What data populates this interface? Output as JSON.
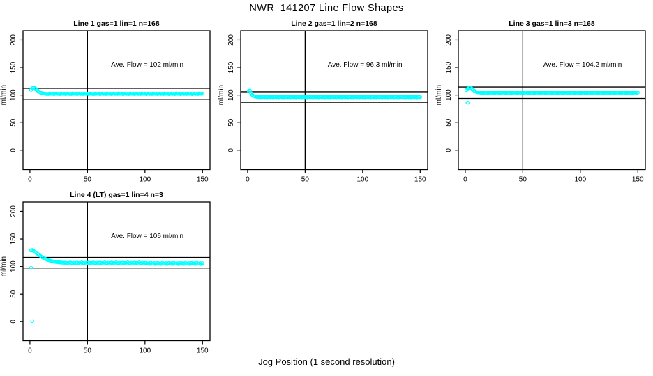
{
  "title": "NWR_141207  Line Flow Shapes",
  "xlabel": "Jog Position (1 second resolution)",
  "colors": {
    "points": "#00ffff",
    "axis": "#000000",
    "background": "#ffffff"
  },
  "axes": {
    "x_ticks": [
      0,
      50,
      100,
      150
    ],
    "y_ticks": [
      0,
      50,
      100,
      150,
      200
    ],
    "ylabel": "ml/min",
    "xlim": [
      -6,
      156.5
    ],
    "ylim": [
      -35,
      217
    ],
    "vline_x": 50,
    "grid": "off",
    "layout": {
      "rows": 2,
      "cols": 3,
      "filled_cells": [
        0,
        1,
        2,
        3
      ]
    }
  },
  "chart_data": [
    {
      "type": "scatter",
      "title": "Line 1 gas=1 lin=1 n=168",
      "annotation": "Ave. Flow =  102  ml/min",
      "ave_flow": 102,
      "hlines": [
        112.2,
        91.8
      ],
      "x_start": 1,
      "x_step": 1,
      "y": [
        109.5,
        112.5,
        113.8,
        113.0,
        111.5,
        109.5,
        107.5,
        105.8,
        104.6,
        103.8,
        103.2,
        102.8,
        102.7,
        102.0,
        102.4,
        101.8,
        102.9,
        102.3,
        102.1,
        102.6,
        101.7,
        102.5,
        102.7,
        102.0,
        102.4,
        101.8,
        102.9,
        102.3,
        102.1,
        102.6,
        101.7,
        102.5,
        102.7,
        102.0,
        102.4,
        101.8,
        102.9,
        102.3,
        102.1,
        102.6,
        101.7,
        102.5,
        102.7,
        102.0,
        102.4,
        101.8,
        102.9,
        102.3,
        102.1,
        102.6,
        101.7,
        102.5,
        102.7,
        102.0,
        102.4,
        101.8,
        102.9,
        102.3,
        102.1,
        102.6,
        101.7,
        102.5,
        102.7,
        102.0,
        102.4,
        101.8,
        102.9,
        102.3,
        102.1,
        102.6,
        101.7,
        102.5,
        102.7,
        102.0,
        102.4,
        101.8,
        102.9,
        102.3,
        102.1,
        102.6,
        101.7,
        102.5,
        102.7,
        102.0,
        102.4,
        101.8,
        102.9,
        102.3,
        102.1,
        102.6,
        101.7,
        102.5,
        102.7,
        102.0,
        102.4,
        101.8,
        102.9,
        102.3,
        102.1,
        102.6,
        101.7,
        102.5,
        102.7,
        102.0,
        102.4,
        101.8,
        102.9,
        102.3,
        102.1,
        102.6,
        101.7,
        102.5,
        102.7,
        102.0,
        102.4,
        101.8,
        102.9,
        102.3,
        102.1,
        102.6,
        101.7,
        102.5,
        102.7,
        102.0,
        102.4,
        101.8,
        102.9,
        102.3,
        102.1,
        102.6,
        101.7,
        102.5,
        102.7,
        102.0,
        102.4,
        101.8,
        102.9,
        102.3,
        102.1,
        102.6,
        101.7,
        102.5,
        102.7,
        102.0,
        102.4,
        101.8,
        102.9,
        102.3,
        102.1,
        102.6
      ],
      "outliers": []
    },
    {
      "type": "scatter",
      "title": "Line 2 gas=1 lin=2 n=168",
      "annotation": "Ave. Flow =  96.3  ml/min",
      "ave_flow": 96.3,
      "hlines": [
        105.9,
        86.7
      ],
      "x_start": 1,
      "x_step": 1,
      "y": [
        107.5,
        108.2,
        103.5,
        100.2,
        98.6,
        97.6,
        97.1,
        96.8,
        96.8,
        96.1,
        96.5,
        95.9,
        97.0,
        96.4,
        96.2,
        96.7,
        95.8,
        96.6,
        96.8,
        96.1,
        96.5,
        95.9,
        97.0,
        96.4,
        96.2,
        96.7,
        95.8,
        96.6,
        96.8,
        96.1,
        96.5,
        95.9,
        97.0,
        96.4,
        96.2,
        96.7,
        95.8,
        96.6,
        96.8,
        96.1,
        96.5,
        95.9,
        97.0,
        96.4,
        96.2,
        96.7,
        95.8,
        96.6,
        96.8,
        96.1,
        96.5,
        95.9,
        97.0,
        96.4,
        96.2,
        96.7,
        95.8,
        96.6,
        96.8,
        96.1,
        96.5,
        95.9,
        97.0,
        96.4,
        96.2,
        96.7,
        95.8,
        96.6,
        96.8,
        96.1,
        96.5,
        95.9,
        97.0,
        96.4,
        96.2,
        96.7,
        95.8,
        96.6,
        96.8,
        96.1,
        96.5,
        95.9,
        97.0,
        96.4,
        96.2,
        96.7,
        95.8,
        96.6,
        96.8,
        96.1,
        96.5,
        95.9,
        97.0,
        96.4,
        96.2,
        96.7,
        95.8,
        96.6,
        96.8,
        96.1,
        96.5,
        95.9,
        97.0,
        96.4,
        96.2,
        96.7,
        95.8,
        96.6,
        96.8,
        96.1,
        96.5,
        95.9,
        97.0,
        96.4,
        96.2,
        96.7,
        95.8,
        96.6,
        96.8,
        96.1,
        96.5,
        95.9,
        97.0,
        96.4,
        96.2,
        96.7,
        95.8,
        96.6,
        96.8,
        96.1,
        96.5,
        95.9,
        97.0,
        96.4,
        96.2,
        96.7,
        95.8,
        96.6,
        96.8,
        96.1,
        96.5,
        95.9,
        97.0,
        96.4,
        96.2,
        96.7,
        95.8,
        96.6,
        96.8,
        96.1
      ],
      "outliers": []
    },
    {
      "type": "scatter",
      "title": "Line 3 gas=1 lin=3 n=168",
      "annotation": "Ave. Flow =  104.2  ml/min",
      "ave_flow": 104.2,
      "hlines": [
        114.6,
        93.8
      ],
      "x_start": 1,
      "x_step": 1,
      "y": [
        109.0,
        111.5,
        113.2,
        113.6,
        112.8,
        111.2,
        109.3,
        107.6,
        106.3,
        105.4,
        104.9,
        104.6,
        104.7,
        104.0,
        104.4,
        103.8,
        104.9,
        104.3,
        104.1,
        104.6,
        103.7,
        104.5,
        104.7,
        104.0,
        104.4,
        103.8,
        104.9,
        104.3,
        104.1,
        104.6,
        103.7,
        104.5,
        104.7,
        104.0,
        104.4,
        103.8,
        104.9,
        104.3,
        104.1,
        104.6,
        103.7,
        104.5,
        104.7,
        104.0,
        104.4,
        103.8,
        104.9,
        104.3,
        104.1,
        104.6,
        103.7,
        104.5,
        104.7,
        104.0,
        104.4,
        103.8,
        104.9,
        104.3,
        104.1,
        104.6,
        103.7,
        104.5,
        104.7,
        104.0,
        104.4,
        103.8,
        104.9,
        104.3,
        104.1,
        104.6,
        103.7,
        104.5,
        104.7,
        104.0,
        104.4,
        103.8,
        104.9,
        104.3,
        104.1,
        104.6,
        103.7,
        104.5,
        104.7,
        104.0,
        104.4,
        103.8,
        104.9,
        104.3,
        104.1,
        104.6,
        103.7,
        104.5,
        104.7,
        104.0,
        104.4,
        103.8,
        104.9,
        104.3,
        104.1,
        104.6,
        103.7,
        104.5,
        104.7,
        104.0,
        104.4,
        103.8,
        104.9,
        104.3,
        104.1,
        104.6,
        103.7,
        104.5,
        104.7,
        104.0,
        104.4,
        103.8,
        104.9,
        104.3,
        104.1,
        104.6,
        103.7,
        104.5,
        104.7,
        104.0,
        104.4,
        103.8,
        104.9,
        104.3,
        104.1,
        104.6,
        103.7,
        104.5,
        104.7,
        104.0,
        104.4,
        103.8,
        104.9,
        104.3,
        104.1,
        104.6,
        103.7,
        104.5,
        104.7,
        104.0,
        104.4,
        103.8,
        104.9,
        104.3,
        104.1,
        104.6
      ],
      "outliers": [
        [
          2,
          86.0
        ]
      ]
    },
    {
      "type": "scatter",
      "title": "Line 4 (LT) gas=1 lin=4 n=3",
      "annotation": "Ave. Flow =  106  ml/min",
      "ave_flow": 106,
      "hlines": [
        116.6,
        95.4
      ],
      "x_start": 1,
      "x_step": 1,
      "y": [
        129.0,
        130.0,
        128.5,
        127.0,
        125.5,
        124.0,
        122.5,
        121.0,
        119.5,
        118.0,
        116.5,
        115.5,
        114.5,
        113.5,
        112.5,
        111.8,
        111.0,
        110.4,
        109.8,
        109.3,
        108.9,
        108.5,
        108.2,
        107.9,
        107.7,
        107.5,
        107.3,
        107.1,
        107.0,
        106.8,
        107.1,
        105.7,
        106.5,
        105.3,
        107.5,
        106.3,
        105.9,
        106.9,
        105.1,
        106.7,
        107.1,
        105.7,
        106.5,
        105.3,
        107.5,
        106.3,
        105.9,
        106.9,
        105.1,
        106.7,
        107.1,
        105.7,
        106.5,
        105.3,
        107.5,
        106.3,
        105.9,
        106.9,
        105.1,
        106.7,
        107.1,
        105.7,
        106.5,
        105.3,
        107.5,
        106.3,
        105.9,
        106.9,
        105.1,
        106.7,
        107.1,
        105.7,
        106.5,
        105.3,
        107.5,
        106.3,
        105.9,
        106.9,
        105.1,
        106.7,
        107.1,
        105.7,
        106.5,
        105.3,
        107.5,
        106.3,
        105.9,
        106.9,
        105.1,
        106.7,
        107.1,
        105.7,
        106.5,
        105.3,
        107.5,
        106.3,
        105.9,
        106.9,
        105.1,
        106.7,
        106.5,
        105.1,
        105.9,
        104.7,
        106.9,
        105.7,
        105.3,
        106.3,
        104.5,
        106.1,
        106.5,
        105.1,
        105.9,
        104.7,
        106.9,
        105.7,
        105.3,
        106.3,
        104.5,
        106.1,
        106.5,
        105.1,
        105.9,
        104.7,
        106.9,
        105.7,
        105.3,
        106.3,
        104.5,
        106.1,
        106.5,
        105.1,
        105.9,
        104.7,
        106.9,
        105.7,
        105.3,
        106.3,
        104.5,
        106.1,
        106.5,
        105.1,
        105.9,
        104.7,
        106.9,
        105.7,
        105.3,
        106.3,
        104.5,
        106.1
      ],
      "outliers": [
        [
          1,
          97.5
        ],
        [
          2,
          0.5
        ]
      ]
    }
  ]
}
